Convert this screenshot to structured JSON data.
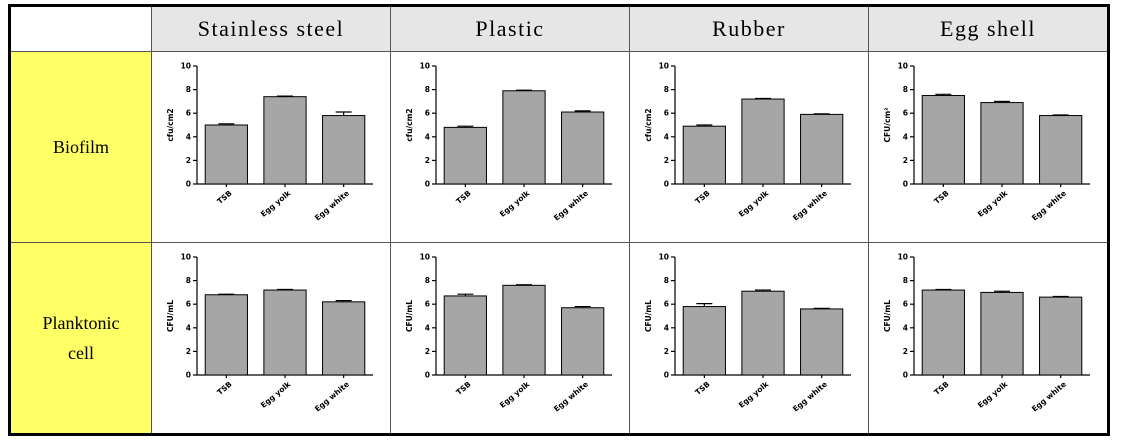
{
  "table": {
    "columns": [
      "Stainless steel",
      "Plastic",
      "Rubber",
      "Egg shell"
    ],
    "rows": [
      "Biofilm",
      "Planktonic cell"
    ]
  },
  "chart_data": [
    {
      "type": "bar",
      "ylabel": "cfu/cm2",
      "categories": [
        "TSB",
        "Egg yolk",
        "Egg white"
      ],
      "values": [
        5.0,
        7.4,
        5.8
      ],
      "errors": [
        0.1,
        0.05,
        0.3
      ],
      "ylim": [
        0,
        10
      ],
      "yticks": [
        0,
        2,
        4,
        6,
        8,
        10
      ],
      "color": "#a6a6a6"
    },
    {
      "type": "bar",
      "ylabel": "cfu/cm2",
      "categories": [
        "TSB",
        "Egg yolk",
        "Egg white"
      ],
      "values": [
        4.8,
        7.9,
        6.1
      ],
      "errors": [
        0.1,
        0.05,
        0.1
      ],
      "ylim": [
        0,
        10
      ],
      "yticks": [
        0,
        2,
        4,
        6,
        8,
        10
      ],
      "color": "#a6a6a6"
    },
    {
      "type": "bar",
      "ylabel": "cfu/cm2",
      "categories": [
        "TSB",
        "Egg yolk",
        "Egg white"
      ],
      "values": [
        4.9,
        7.2,
        5.9
      ],
      "errors": [
        0.1,
        0.05,
        0.05
      ],
      "ylim": [
        0,
        10
      ],
      "yticks": [
        0,
        2,
        4,
        6,
        8,
        10
      ],
      "color": "#a6a6a6"
    },
    {
      "type": "bar",
      "ylabel": "CFU/cm²",
      "categories": [
        "TSB",
        "Egg yolk",
        "Egg white"
      ],
      "values": [
        7.5,
        6.9,
        5.8
      ],
      "errors": [
        0.1,
        0.1,
        0.05
      ],
      "ylim": [
        0,
        10
      ],
      "yticks": [
        0,
        2,
        4,
        6,
        8,
        10
      ],
      "color": "#a6a6a6"
    },
    {
      "type": "bar",
      "ylabel": "CFU/mL",
      "categories": [
        "TSB",
        "Egg yolk",
        "Egg white"
      ],
      "values": [
        6.8,
        7.2,
        6.2
      ],
      "errors": [
        0.05,
        0.05,
        0.1
      ],
      "ylim": [
        0,
        10
      ],
      "yticks": [
        0,
        2,
        4,
        6,
        8,
        10
      ],
      "color": "#a6a6a6"
    },
    {
      "type": "bar",
      "ylabel": "CFU/mL",
      "categories": [
        "TSB",
        "Egg yolk",
        "Egg white"
      ],
      "values": [
        6.7,
        7.6,
        5.7
      ],
      "errors": [
        0.15,
        0.05,
        0.1
      ],
      "ylim": [
        0,
        10
      ],
      "yticks": [
        0,
        2,
        4,
        6,
        8,
        10
      ],
      "color": "#a6a6a6"
    },
    {
      "type": "bar",
      "ylabel": "CFU/mL",
      "categories": [
        "TSB",
        "Egg yolk",
        "Egg white"
      ],
      "values": [
        5.8,
        7.1,
        5.6
      ],
      "errors": [
        0.25,
        0.1,
        0.05
      ],
      "ylim": [
        0,
        10
      ],
      "yticks": [
        0,
        2,
        4,
        6,
        8,
        10
      ],
      "color": "#a6a6a6"
    },
    {
      "type": "bar",
      "ylabel": "CFU/mL",
      "categories": [
        "TSB",
        "Egg yolk",
        "Egg white"
      ],
      "values": [
        7.2,
        7.0,
        6.6
      ],
      "errors": [
        0.05,
        0.1,
        0.05
      ],
      "ylim": [
        0,
        10
      ],
      "yticks": [
        0,
        2,
        4,
        6,
        8,
        10
      ],
      "color": "#a6a6a6"
    }
  ]
}
